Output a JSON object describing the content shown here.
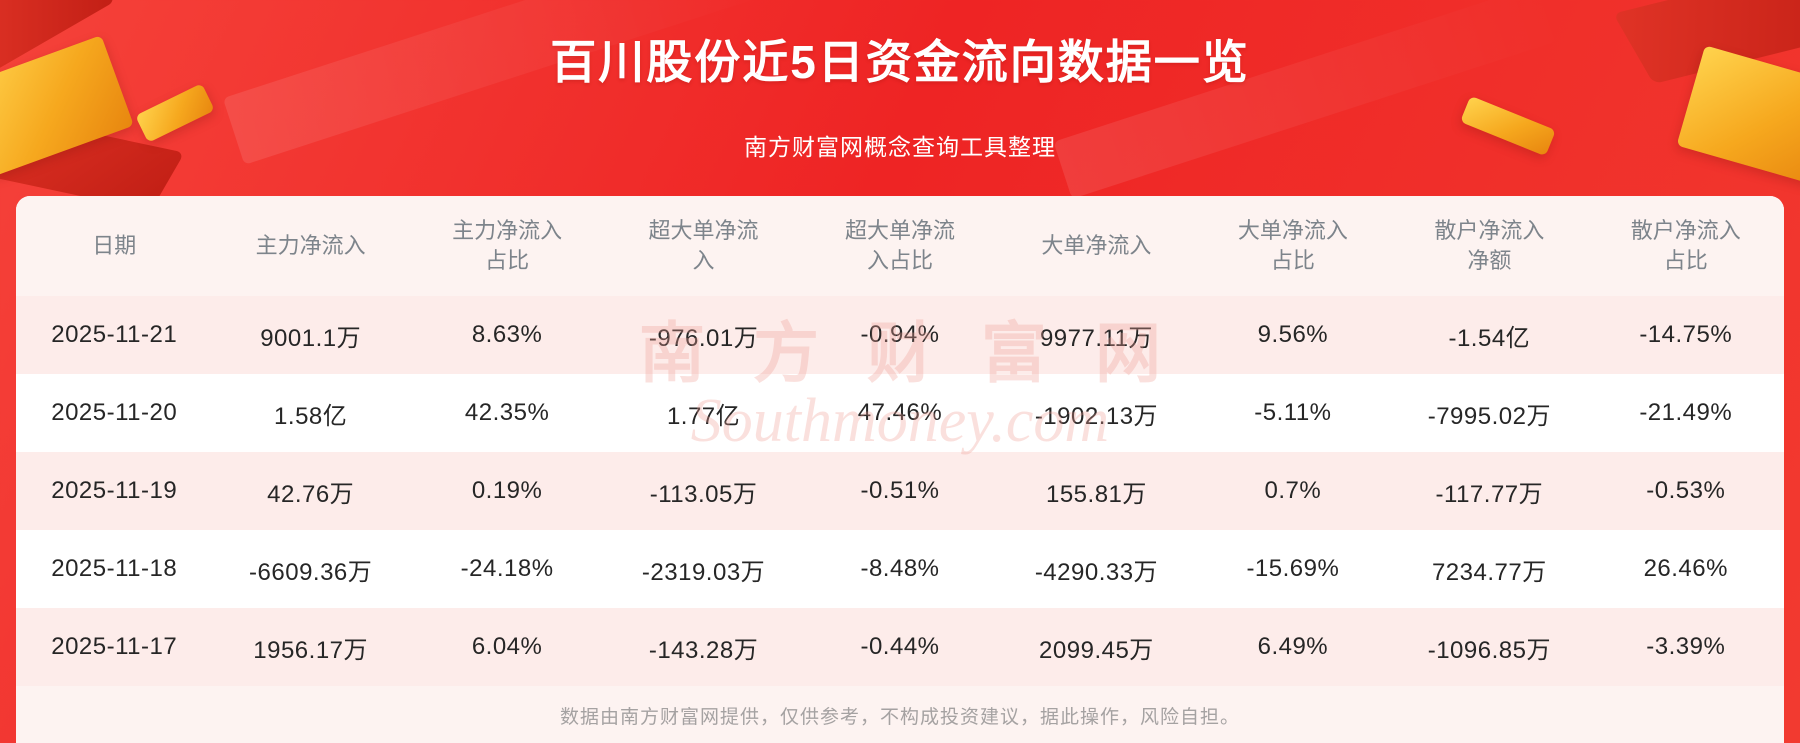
{
  "page": {
    "title": "百川股份近5日资金流向数据一览",
    "subtitle": "南方财富网概念查询工具整理",
    "footer": "数据由南方财富网提供，仅供参考，不构成投资建议，据此操作，风险自担。",
    "watermark_cn": "南方财富网",
    "watermark_en": "Southmoney.com"
  },
  "colors": {
    "background_red": "#ee2424",
    "card_background": "#fdf3f1",
    "row_pink": "#fdecea",
    "row_white": "#ffffff",
    "gold_accent": "#f6a81e",
    "header_text": "#7d848b",
    "cell_text": "#262626",
    "footer_text": "#a5a2a2",
    "title_text": "#ffffff"
  },
  "chart_data": {
    "type": "table",
    "title": "百川股份近5日资金流向数据一览",
    "columns": [
      "日期",
      "主力净流入",
      "主力净流入占比",
      "超大单净流入",
      "超大单净流入占比",
      "大单净流入",
      "大单净流入占比",
      "散户净流入净额",
      "散户净流入占比"
    ],
    "rows": [
      [
        "2025-11-21",
        "9001.1万",
        "8.63%",
        "-976.01万",
        "-0.94%",
        "9977.11万",
        "9.56%",
        "-1.54亿",
        "-14.75%"
      ],
      [
        "2025-11-20",
        "1.58亿",
        "42.35%",
        "1.77亿",
        "47.46%",
        "-1902.13万",
        "-5.11%",
        "-7995.02万",
        "-21.49%"
      ],
      [
        "2025-11-19",
        "42.76万",
        "0.19%",
        "-113.05万",
        "-0.51%",
        "155.81万",
        "0.7%",
        "-117.77万",
        "-0.53%"
      ],
      [
        "2025-11-18",
        "-6609.36万",
        "-24.18%",
        "-2319.03万",
        "-8.48%",
        "-4290.33万",
        "-15.69%",
        "7234.77万",
        "26.46%"
      ],
      [
        "2025-11-17",
        "1956.17万",
        "6.04%",
        "-143.28万",
        "-0.44%",
        "2099.45万",
        "6.49%",
        "-1096.85万",
        "-3.39%"
      ]
    ]
  }
}
